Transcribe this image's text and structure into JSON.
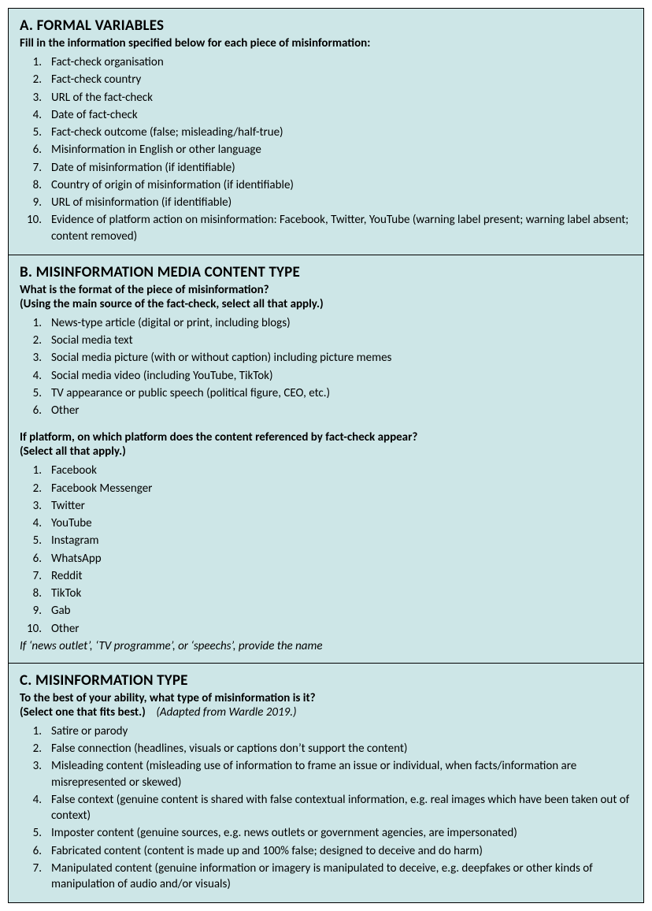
{
  "colors": {
    "panel_bg": "#cde6e7",
    "border": "#000000",
    "text": "#000000"
  },
  "typography": {
    "title_size_pt": 14,
    "body_size_pt": 11
  },
  "sections": {
    "a": {
      "title": "A. FORMAL VARIABLES",
      "sub": "Fill in the information specified below for each piece of misinformation:",
      "items": [
        "Fact-check organisation",
        "Fact-check country",
        "URL of the fact-check",
        "Date of fact-check",
        "Fact-check outcome (false; misleading/half-true)",
        "Misinformation in English or other language",
        "Date of misinformation (if identifiable)",
        "Country of origin of misinformation (if identifiable)",
        "URL of misinformation (if identifiable)",
        "Evidence of platform action on misinformation: Facebook, Twitter, YouTube (warning label present; warning label absent; content removed)"
      ]
    },
    "b": {
      "title": "B. MISINFORMATION MEDIA CONTENT TYPE",
      "sub1a": "What is the format of the piece of misinformation?",
      "sub1b": "(Using the main source of the fact-check, select all that apply.)",
      "items1": [
        "News-type article (digital or print, including blogs)",
        "Social media text",
        "Social media picture (with or without caption) including picture memes",
        "Social media video (including YouTube, TikTok)",
        "TV appearance or public speech (political figure, CEO, etc.)",
        "Other"
      ],
      "sub2a": "If platform, on which platform does the content referenced by fact-check appear?",
      "sub2b": "(Select all that apply.)",
      "items2": [
        "Facebook",
        "Facebook Messenger",
        "Twitter",
        "YouTube",
        "Instagram",
        "WhatsApp",
        "Reddit",
        "TikTok",
        "Gab",
        "Other"
      ],
      "note": "If ‘news outlet’, ‘TV programme’, or ‘speechs’, provide the name"
    },
    "c": {
      "title": "C. MISINFORMATION TYPE",
      "sub1": "To the best of your ability, what type of misinformation is it?",
      "sub2_bold": "(Select one that fits best.)",
      "sub2_ital": "(Adapted from Wardle 2019.)",
      "items": [
        "Satire or parody",
        "False connection (headlines, visuals or captions don’t support the content)",
        "Misleading content (misleading use of information to frame an issue or individual, when facts/information are misrepresented or skewed)",
        "False context (genuine content is shared with false contextual information, e.g. real images which have been taken out of context)",
        "Imposter content (genuine sources, e.g. news outlets or government agencies, are impersonated)",
        "Fabricated content (content is made up and 100% false; designed to deceive and do harm)",
        "Manipulated content  (genuine information or imagery is manipulated to deceive, e.g. deepfakes or other kinds of manipulation of audio and/or visuals)"
      ]
    }
  }
}
